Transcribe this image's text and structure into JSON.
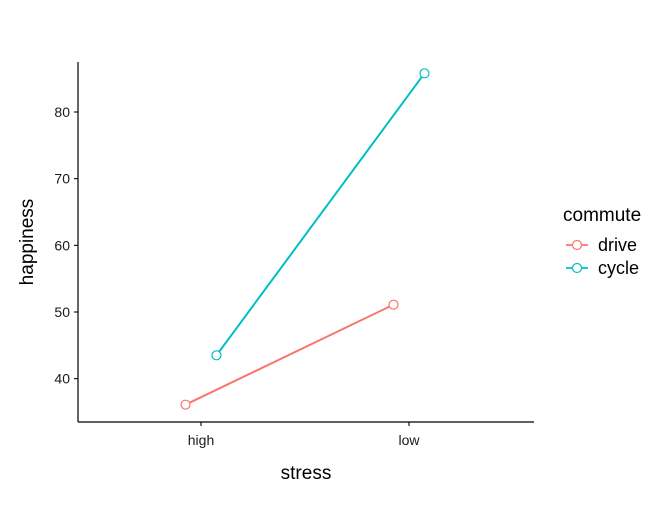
{
  "chart_data": {
    "type": "line",
    "xlabel": "stress",
    "ylabel": "happiness",
    "categories": [
      "high",
      "low"
    ],
    "ylim": [
      33.5,
      87.5
    ],
    "yticks": [
      40,
      50,
      60,
      70,
      80
    ],
    "grid": false,
    "legend": {
      "title": "commute",
      "position": "right"
    },
    "series": [
      {
        "name": "drive",
        "color": "#F8766D",
        "values": [
          36.1,
          51.1
        ]
      },
      {
        "name": "cycle",
        "color": "#00BFC4",
        "values": [
          43.5,
          85.8
        ]
      }
    ]
  }
}
